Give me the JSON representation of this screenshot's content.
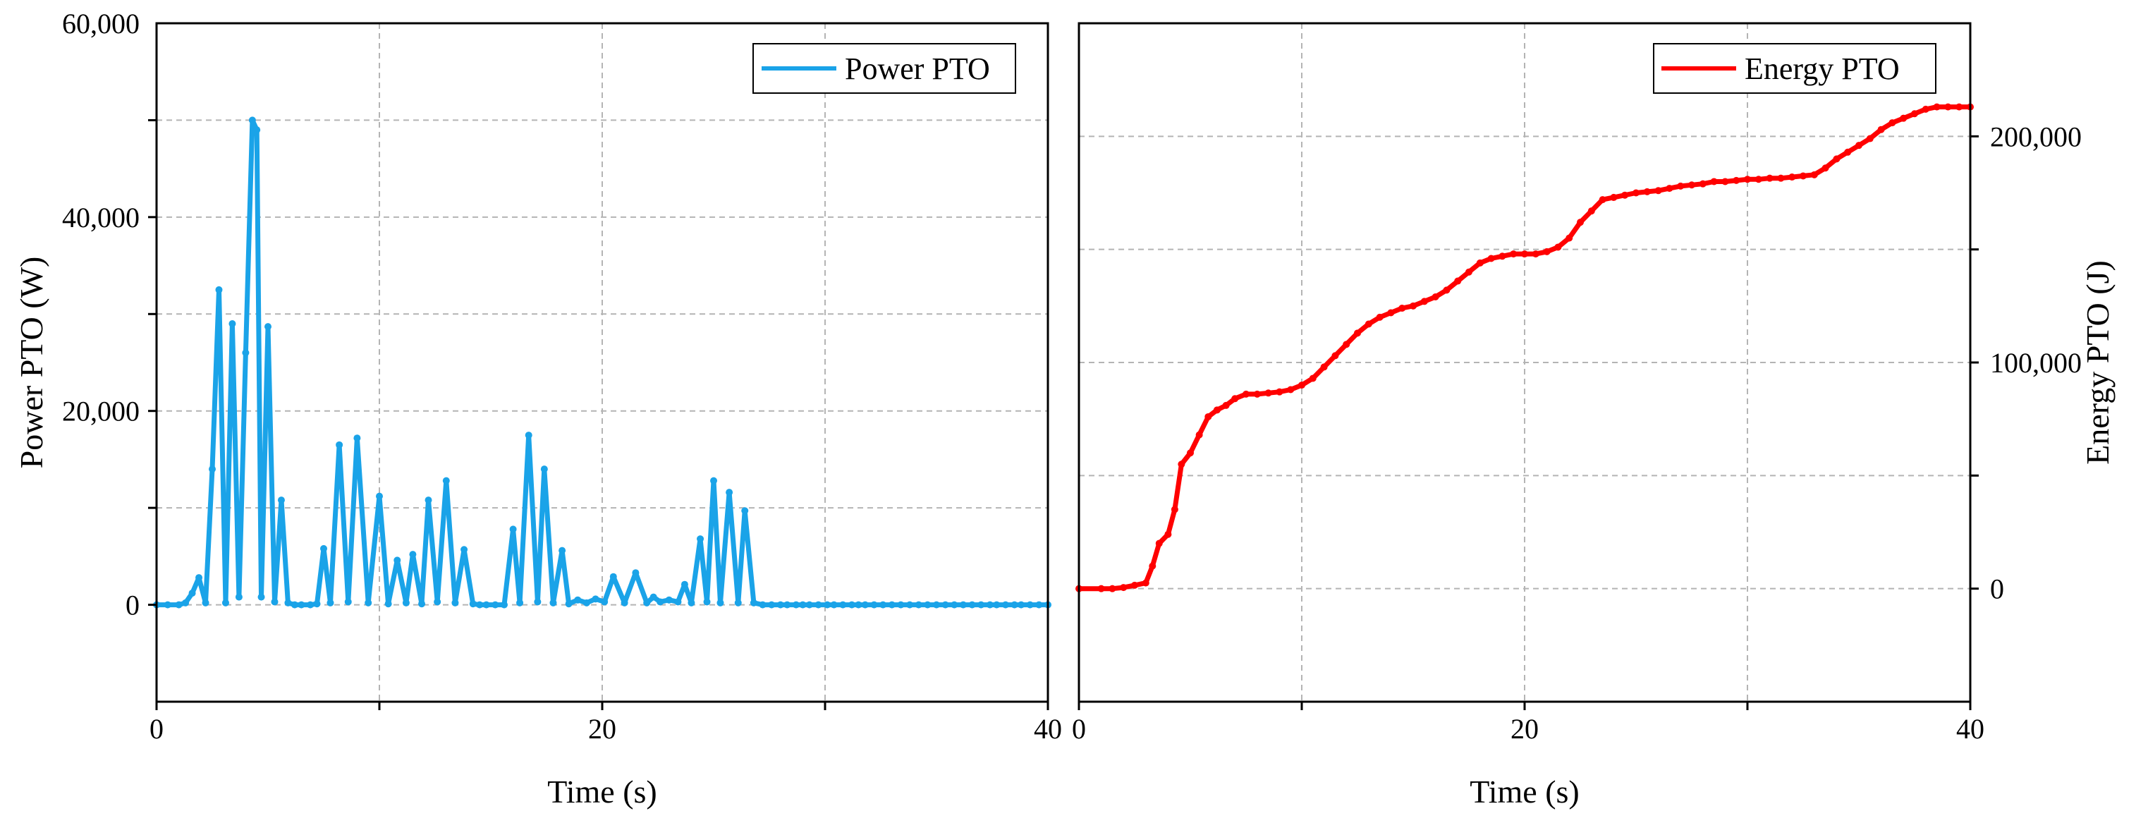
{
  "chart_data": [
    {
      "type": "line",
      "xlabel": "Time (s)",
      "ylabel": "Power PTO (W)",
      "xlim": [
        0,
        40
      ],
      "ylim": [
        -10000,
        60000
      ],
      "xticks": [
        0,
        20,
        40
      ],
      "xtick_labels": [
        "0",
        "20",
        "40"
      ],
      "yticks": [
        0,
        20000,
        40000,
        60000
      ],
      "ytick_labels": [
        "0",
        "20,000",
        "40,000",
        "60,000"
      ],
      "y_axis_side": "left",
      "grid": true,
      "legend_position": "top-right",
      "series": [
        {
          "name": "Power PTO",
          "color": "#1aa3e8",
          "x": [
            0,
            0.5,
            1.0,
            1.3,
            1.6,
            1.9,
            2.2,
            2.5,
            2.8,
            3.1,
            3.4,
            3.7,
            4.0,
            4.3,
            4.5,
            4.7,
            5.0,
            5.3,
            5.6,
            5.9,
            6.2,
            6.5,
            6.9,
            7.2,
            7.5,
            7.8,
            8.2,
            8.6,
            9.0,
            9.5,
            10.0,
            10.4,
            10.8,
            11.2,
            11.5,
            11.9,
            12.2,
            12.6,
            13.0,
            13.4,
            13.8,
            14.2,
            14.5,
            14.8,
            15.2,
            15.6,
            16.0,
            16.3,
            16.7,
            17.1,
            17.4,
            17.8,
            18.2,
            18.5,
            18.9,
            19.3,
            19.7,
            20.1,
            20.5,
            21.0,
            21.5,
            22.0,
            22.3,
            22.6,
            23.0,
            23.4,
            23.7,
            24.0,
            24.4,
            24.7,
            25.0,
            25.3,
            25.7,
            26.1,
            26.4,
            26.8,
            27.2,
            27.6,
            28.0,
            28.3,
            28.7,
            29.0,
            29.3,
            29.7,
            30.1,
            30.4,
            30.8,
            31.2,
            31.5,
            31.8,
            32.2,
            32.6,
            33.0,
            33.4,
            33.8,
            34.2,
            34.6,
            35.0,
            35.4,
            35.8,
            36.2,
            36.6,
            37.0,
            37.4,
            37.7,
            38.1,
            38.5,
            38.8,
            39.2,
            39.6,
            40.0
          ],
          "values": [
            0,
            0,
            0,
            200,
            1200,
            2800,
            200,
            14000,
            32500,
            200,
            29000,
            800,
            26000,
            50000,
            49000,
            800,
            28700,
            300,
            10800,
            200,
            0,
            0,
            0,
            100,
            5800,
            200,
            16500,
            300,
            17200,
            200,
            11200,
            100,
            4600,
            200,
            5200,
            100,
            10800,
            300,
            12800,
            200,
            5700,
            100,
            0,
            0,
            0,
            0,
            7800,
            200,
            17500,
            300,
            14000,
            200,
            5600,
            100,
            500,
            200,
            600,
            300,
            2900,
            200,
            3300,
            200,
            800,
            300,
            500,
            300,
            2100,
            200,
            6800,
            300,
            12800,
            200,
            11600,
            200,
            9700,
            200,
            0,
            0,
            0,
            0,
            0,
            0,
            0,
            0,
            0,
            0,
            0,
            0,
            0,
            0,
            0,
            0,
            0,
            0,
            0,
            0,
            0,
            0,
            0,
            0,
            0,
            0,
            0,
            0,
            0,
            0,
            0,
            0,
            0,
            0,
            0
          ]
        }
      ]
    },
    {
      "type": "line",
      "xlabel": "Time (s)",
      "ylabel": "Energy PTO (J)",
      "xlim": [
        0,
        40
      ],
      "ylim": [
        -50000,
        250000
      ],
      "xticks": [
        0,
        20,
        40
      ],
      "xtick_labels": [
        "0",
        "20",
        "40"
      ],
      "yticks": [
        0,
        100000,
        200000
      ],
      "ytick_labels": [
        "0",
        "100,000",
        "200,000"
      ],
      "y_axis_side": "right",
      "grid": true,
      "legend_position": "top-right",
      "series": [
        {
          "name": "Energy PTO",
          "color": "#ff0000",
          "x": [
            0,
            1.0,
            1.5,
            2.0,
            2.5,
            3.0,
            3.3,
            3.6,
            4.0,
            4.3,
            4.6,
            5.0,
            5.4,
            5.8,
            6.2,
            6.6,
            7.0,
            7.5,
            8.0,
            8.5,
            9.0,
            9.5,
            10.0,
            10.5,
            11.0,
            11.5,
            12.0,
            12.5,
            13.0,
            13.5,
            14.0,
            14.5,
            15.0,
            15.5,
            16.0,
            16.5,
            17.0,
            17.5,
            18.0,
            18.5,
            19.0,
            19.5,
            20.0,
            20.5,
            21.0,
            21.5,
            22.0,
            22.5,
            23.0,
            23.5,
            24.0,
            24.5,
            25.0,
            25.5,
            26.0,
            26.5,
            27.0,
            27.5,
            28.0,
            28.5,
            29.0,
            29.5,
            30.0,
            30.5,
            31.0,
            31.5,
            32.0,
            32.5,
            33.0,
            33.5,
            34.0,
            34.5,
            35.0,
            35.5,
            36.0,
            36.5,
            37.0,
            37.5,
            38.0,
            38.5,
            39.0,
            39.5,
            40.0
          ],
          "values": [
            0,
            0,
            0,
            500,
            1500,
            2500,
            10000,
            20000,
            24000,
            35000,
            55000,
            60000,
            68000,
            76000,
            79000,
            81000,
            84000,
            86000,
            86000,
            86500,
            87000,
            88000,
            90000,
            93000,
            98000,
            103000,
            108000,
            113000,
            117000,
            120000,
            122000,
            124000,
            125000,
            127000,
            129000,
            132000,
            136000,
            140000,
            144000,
            146000,
            147000,
            148000,
            148000,
            148000,
            149000,
            151000,
            155000,
            162000,
            167000,
            172000,
            173000,
            174000,
            175000,
            175500,
            176000,
            177000,
            178000,
            178500,
            179000,
            180000,
            180000,
            180500,
            181000,
            181000,
            181500,
            181500,
            182000,
            182500,
            183000,
            186000,
            190000,
            193000,
            196000,
            199000,
            203000,
            206000,
            208000,
            210000,
            212000,
            213000,
            213000,
            213000,
            213000
          ]
        }
      ]
    }
  ]
}
